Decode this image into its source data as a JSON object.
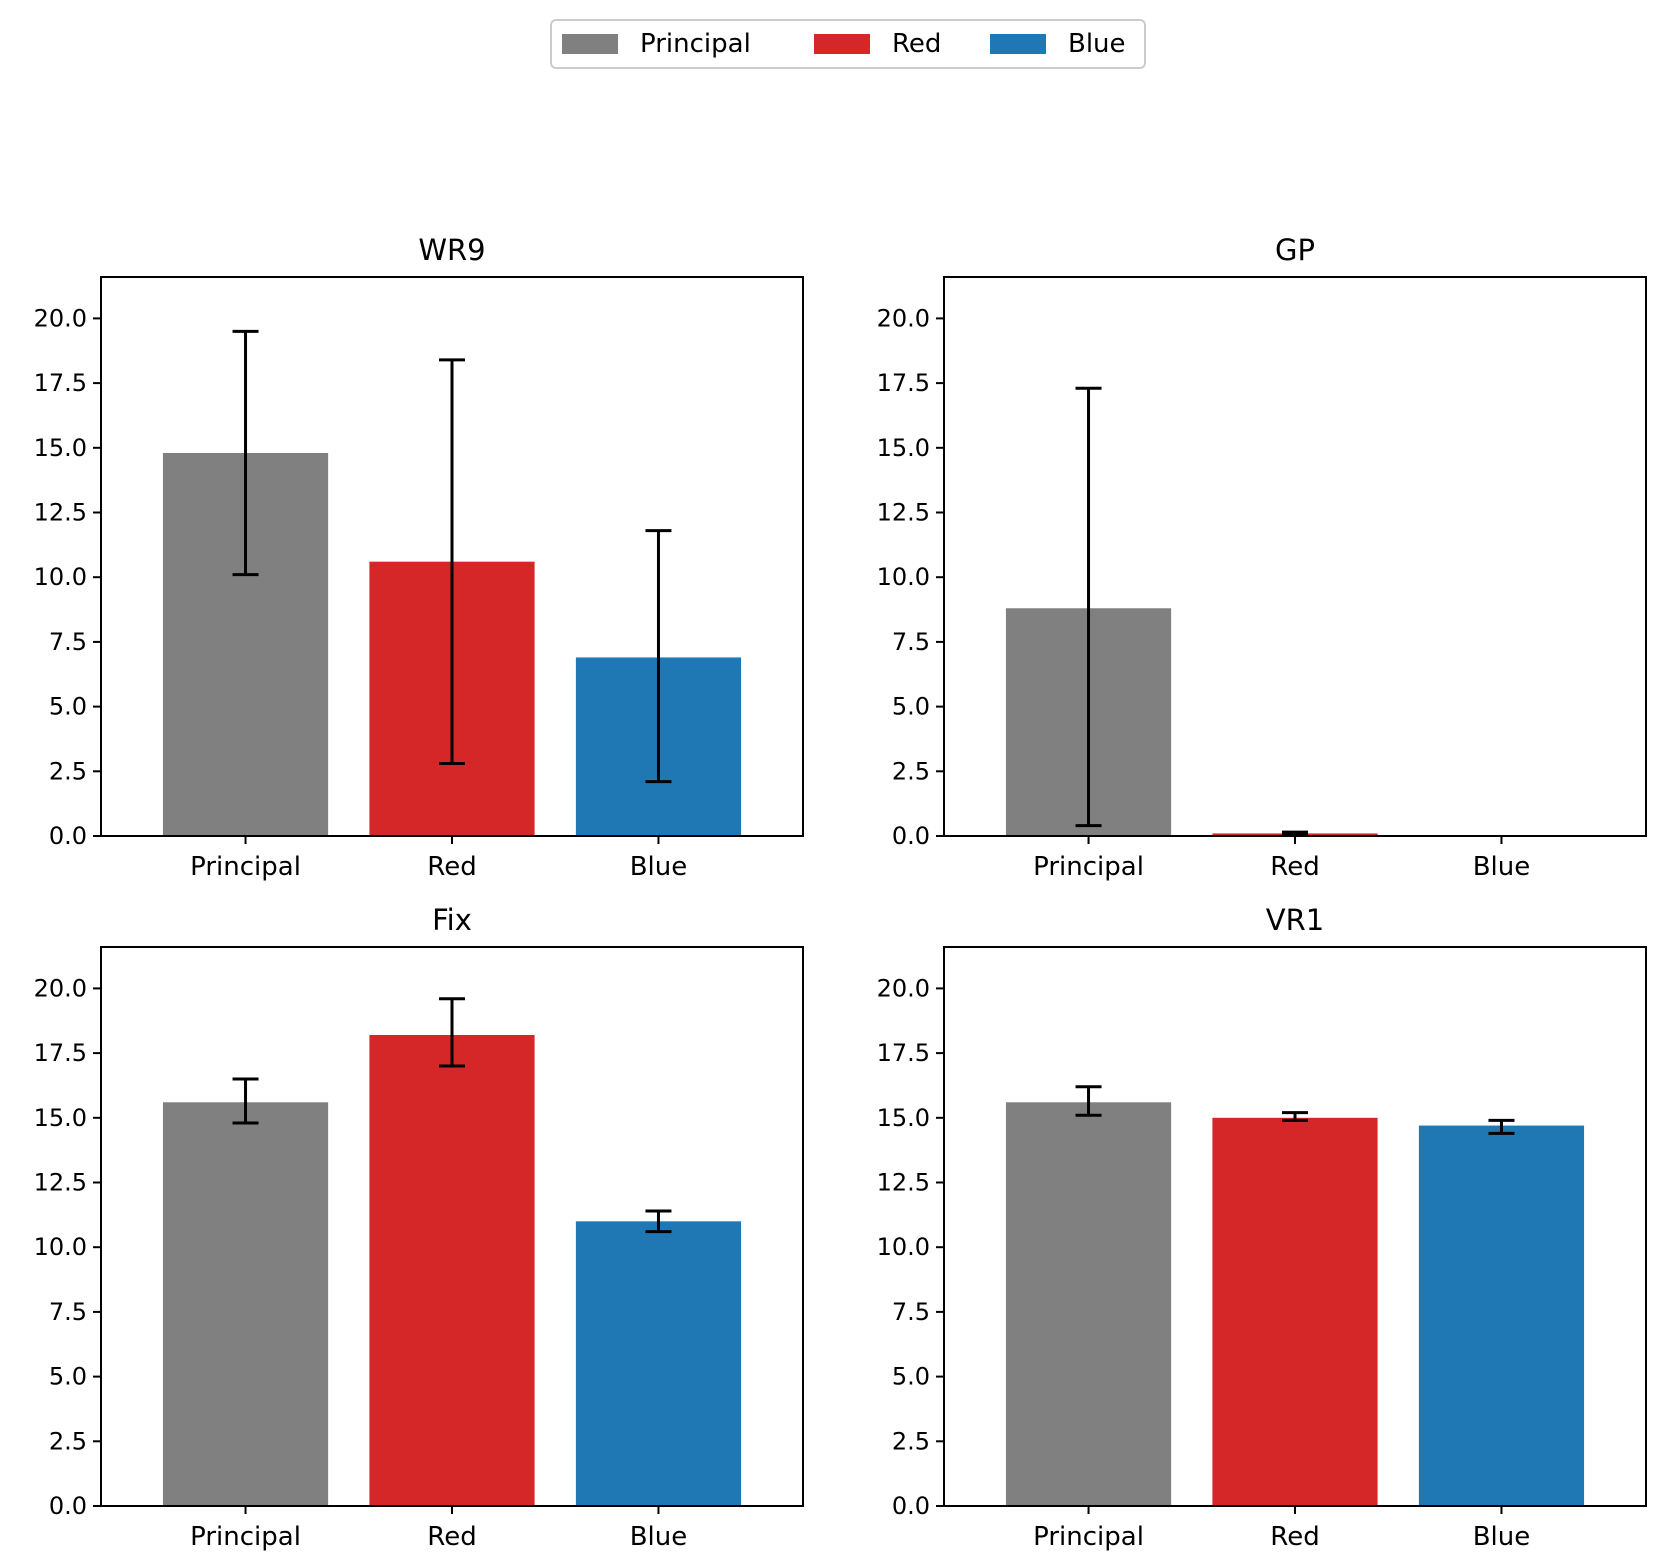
{
  "colors": {
    "Principal": "#808080",
    "Red": "#d62728",
    "Blue": "#1f77b4",
    "axes": "#000000",
    "errorbar": "#000000"
  },
  "legend": {
    "placement": "top-center",
    "entries": [
      {
        "label": "Principal",
        "color": "#808080"
      },
      {
        "label": "Red",
        "color": "#d62728"
      },
      {
        "label": "Blue",
        "color": "#1f77b4"
      }
    ]
  },
  "chart_data": [
    {
      "type": "bar",
      "title": "WR9",
      "categories": [
        "Principal",
        "Red",
        "Blue"
      ],
      "values": [
        14.8,
        10.6,
        6.9
      ],
      "errors": [
        [
          10.1,
          19.5
        ],
        [
          2.8,
          18.4
        ],
        [
          2.1,
          11.8
        ]
      ],
      "ylim": [
        0,
        21.6
      ],
      "yticks": [
        0.0,
        2.5,
        5.0,
        7.5,
        10.0,
        12.5,
        15.0,
        17.5,
        20.0
      ],
      "ytick_labels": [
        "0.0",
        "2.5",
        "5.0",
        "7.5",
        "10.0",
        "12.5",
        "15.0",
        "17.5",
        "20.0"
      ],
      "xlabel": "",
      "ylabel": ""
    },
    {
      "type": "bar",
      "title": "GP",
      "categories": [
        "Principal",
        "Red",
        "Blue"
      ],
      "values": [
        8.8,
        0.1,
        0.0
      ],
      "errors": [
        [
          0.4,
          17.3
        ],
        [
          0.05,
          0.15
        ],
        null
      ],
      "ylim": [
        0,
        21.6
      ],
      "yticks": [
        0.0,
        2.5,
        5.0,
        7.5,
        10.0,
        12.5,
        15.0,
        17.5,
        20.0
      ],
      "ytick_labels": [
        "0.0",
        "2.5",
        "5.0",
        "7.5",
        "10.0",
        "12.5",
        "15.0",
        "17.5",
        "20.0"
      ],
      "xlabel": "",
      "ylabel": ""
    },
    {
      "type": "bar",
      "title": "Fix",
      "categories": [
        "Principal",
        "Red",
        "Blue"
      ],
      "values": [
        15.6,
        18.2,
        11.0
      ],
      "errors": [
        [
          14.8,
          16.5
        ],
        [
          17.0,
          19.6
        ],
        [
          10.6,
          11.4
        ]
      ],
      "ylim": [
        0,
        21.6
      ],
      "yticks": [
        0.0,
        2.5,
        5.0,
        7.5,
        10.0,
        12.5,
        15.0,
        17.5,
        20.0
      ],
      "ytick_labels": [
        "0.0",
        "2.5",
        "5.0",
        "7.5",
        "10.0",
        "12.5",
        "15.0",
        "17.5",
        "20.0"
      ],
      "xlabel": "",
      "ylabel": ""
    },
    {
      "type": "bar",
      "title": "VR1",
      "categories": [
        "Principal",
        "Red",
        "Blue"
      ],
      "values": [
        15.6,
        15.0,
        14.7
      ],
      "errors": [
        [
          15.1,
          16.2
        ],
        [
          14.9,
          15.2
        ],
        [
          14.4,
          14.9
        ]
      ],
      "ylim": [
        0,
        21.6
      ],
      "yticks": [
        0.0,
        2.5,
        5.0,
        7.5,
        10.0,
        12.5,
        15.0,
        17.5,
        20.0
      ],
      "ytick_labels": [
        "0.0",
        "2.5",
        "5.0",
        "7.5",
        "10.0",
        "12.5",
        "15.0",
        "17.5",
        "20.0"
      ],
      "xlabel": "",
      "ylabel": ""
    }
  ]
}
